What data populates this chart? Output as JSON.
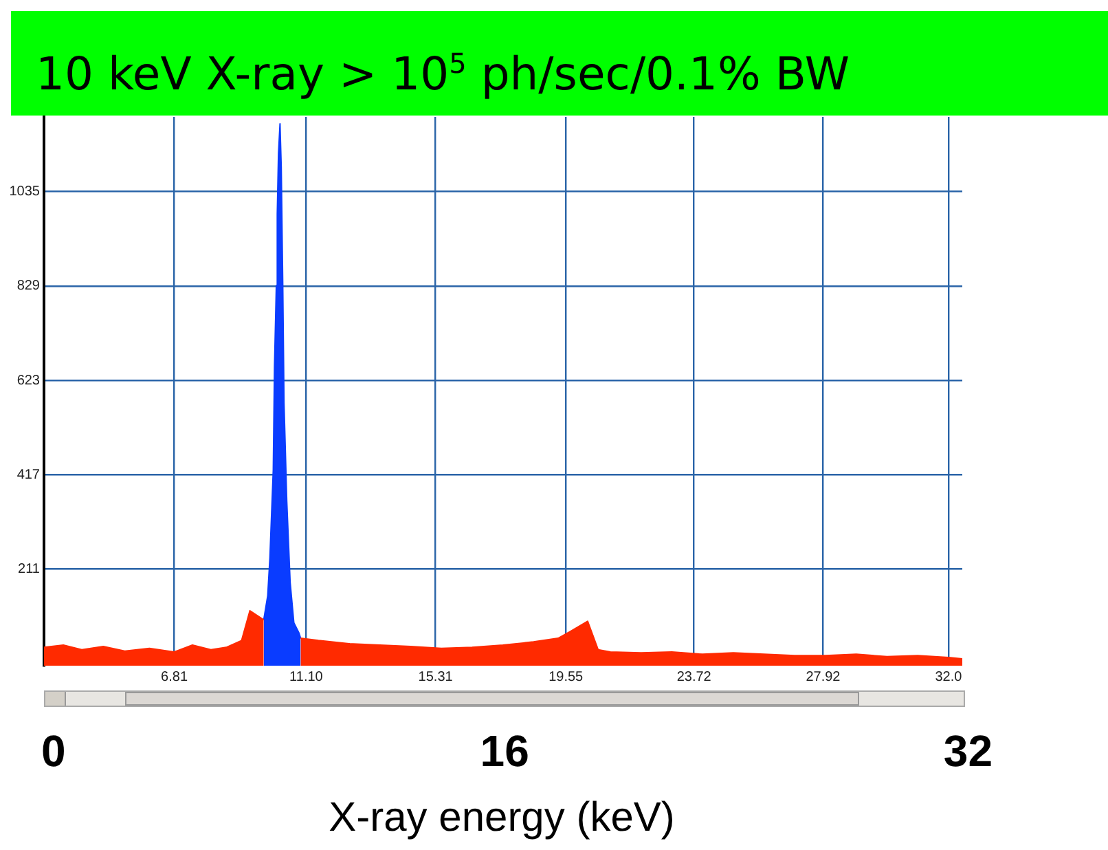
{
  "chart_data": {
    "type": "area",
    "title": "10 keV X-ray > 10$^{5}$ ph/sec/0.1% BW",
    "xlabel": "X-ray energy (keV)",
    "annotations": [
      "0",
      "16",
      "32"
    ],
    "xlim": [
      2.57,
      32.45
    ],
    "xticks": [
      6.81,
      {
        "value": 11.1,
        "label": "11.10"
      },
      15.31,
      19.55,
      23.72,
      27.92,
      {
        "value": 32,
        "label": "32.0"
      }
    ],
    "ylim": [
      0,
      1198
    ],
    "yticks": [
      211,
      417,
      623,
      829,
      1035
    ],
    "grid": true,
    "legend": false,
    "series": [
      {
        "color": "#ff2a00",
        "x": [
          2.57,
          3.2,
          3.8,
          4.5,
          5.2,
          6.0,
          6.8,
          7.4,
          8.0,
          8.5,
          9.0,
          9.27,
          9.72,
          9.73,
          10.91,
          10.92,
          11.5,
          12.5,
          13.5,
          14.5,
          15.5,
          16.5,
          17.5,
          18.5,
          19.3,
          19.7,
          20.26,
          20.6,
          21,
          22,
          23,
          24,
          25,
          26,
          27,
          28,
          29,
          30,
          31,
          32,
          32.45
        ],
        "values": [
          40,
          45,
          35,
          42,
          32,
          38,
          30,
          45,
          35,
          40,
          55,
          120,
          100,
          null,
          null,
          60,
          55,
          48,
          45,
          42,
          38,
          40,
          45,
          52,
          60,
          75,
          97,
          35,
          30,
          28,
          30,
          25,
          28,
          25,
          22,
          22,
          25,
          20,
          22,
          18,
          15
        ]
      },
      {
        "color": "#0a3cff",
        "x": [
          9.72,
          9.85,
          9.92,
          10.03,
          10.07,
          10.13,
          10.16,
          10.2,
          10.25,
          10.29,
          10.34,
          10.38,
          10.47,
          10.58,
          10.7,
          10.87,
          10.92
        ],
        "values": [
          100,
          153,
          235,
          427,
          653,
          830,
          986,
          1118,
          1183,
          1089,
          830,
          574,
          359,
          182,
          94,
          71,
          60
        ]
      }
    ]
  }
}
